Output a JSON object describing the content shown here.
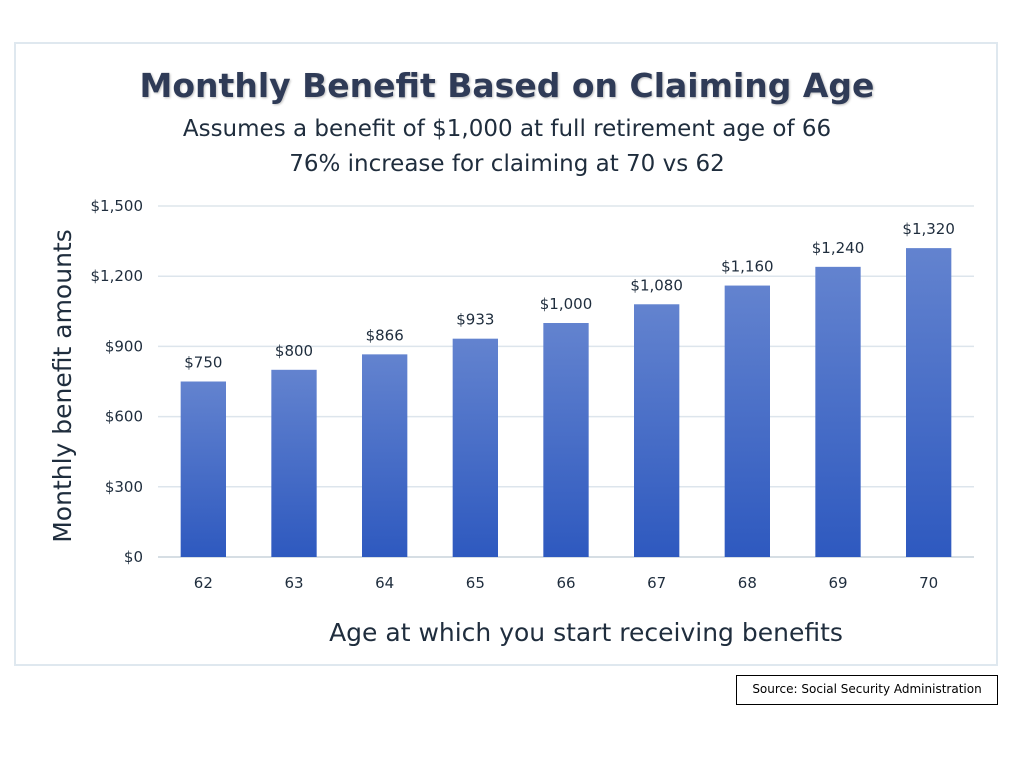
{
  "chart_data": {
    "type": "bar",
    "title": "Monthly Benefit Based on Claiming Age",
    "subtitles": [
      "Assumes a benefit of $1,000 at full retirement age of 66",
      "76% increase for claiming at 70 vs 62"
    ],
    "xlabel": "Age at which you start receiving benefits",
    "ylabel": "Monthly benefit amounts",
    "categories": [
      "62",
      "63",
      "64",
      "65",
      "66",
      "67",
      "68",
      "69",
      "70"
    ],
    "values": [
      750,
      800,
      866,
      933,
      1000,
      1080,
      1160,
      1240,
      1320
    ],
    "data_labels": [
      "$750",
      "$800",
      "$866",
      "$933",
      "$1,000",
      "$1,080",
      "$1,160",
      "$1,240",
      "$1,320"
    ],
    "ylim": [
      0,
      1500
    ],
    "yticks": [
      0,
      300,
      600,
      900,
      1200,
      1500
    ],
    "ytick_labels": [
      "$0",
      "$300",
      "$600",
      "$900",
      "$1,200",
      "$1,500"
    ],
    "grid": true,
    "bar_color_top": "#6383cf",
    "bar_color_bottom": "#2e59bf"
  },
  "source": {
    "text": "Source: Social Security Administration"
  }
}
